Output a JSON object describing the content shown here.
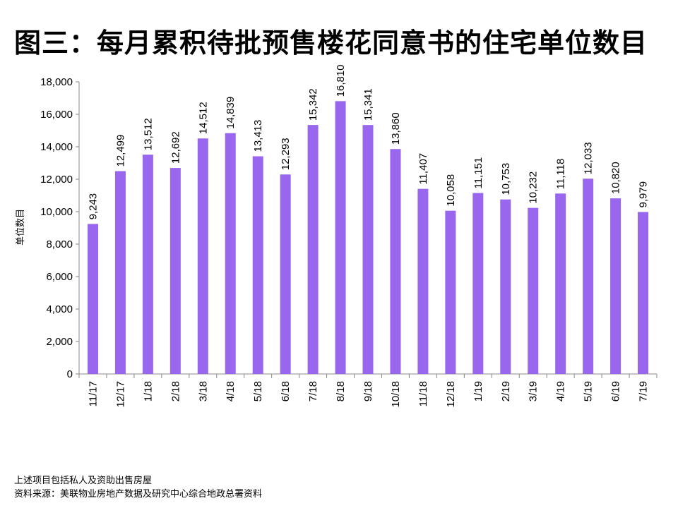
{
  "title": "图三：每月累积待批预售楼花同意书的住宅单位数目",
  "notes": {
    "line1": "上述项目包括私人及资助出售房屋",
    "line2": "资料来源：美联物业房地产数据及研究中心综合地政总署资料"
  },
  "chart_data": {
    "type": "bar",
    "title": "图三：每月累积待批预售楼花同意书的住宅单位数目",
    "xlabel": "",
    "ylabel": "单位数目",
    "ylim": [
      0,
      18000
    ],
    "yticks": [
      0,
      2000,
      4000,
      6000,
      8000,
      10000,
      12000,
      14000,
      16000,
      18000
    ],
    "ytick_labels": [
      "0",
      "2,000",
      "4,000",
      "6,000",
      "8,000",
      "10,000",
      "12,000",
      "14,000",
      "16,000",
      "18,000"
    ],
    "grid": false,
    "legend": "none",
    "bar_color": "#9966EE",
    "categories": [
      "11/17",
      "12/17",
      "1/18",
      "2/18",
      "3/18",
      "4/18",
      "5/18",
      "6/18",
      "7/18",
      "8/18",
      "9/18",
      "10/18",
      "11/18",
      "12/18",
      "1/19",
      "2/19",
      "3/19",
      "4/19",
      "5/19",
      "6/19",
      "7/19"
    ],
    "values": [
      9243,
      12499,
      13512,
      12692,
      14512,
      14839,
      13413,
      12293,
      15342,
      16810,
      15341,
      13860,
      11407,
      10058,
      11151,
      10753,
      10232,
      11118,
      12033,
      10820,
      9979
    ],
    "data_labels": [
      "9,243",
      "12,499",
      "13,512",
      "12,692",
      "14,512",
      "14,839",
      "13,413",
      "12,293",
      "15,342",
      "16,810",
      "15,341",
      "13,860",
      "11,407",
      "10,058",
      "11,151",
      "10,753",
      "10,232",
      "11,118",
      "12,033",
      "10,820",
      "9,979"
    ]
  }
}
